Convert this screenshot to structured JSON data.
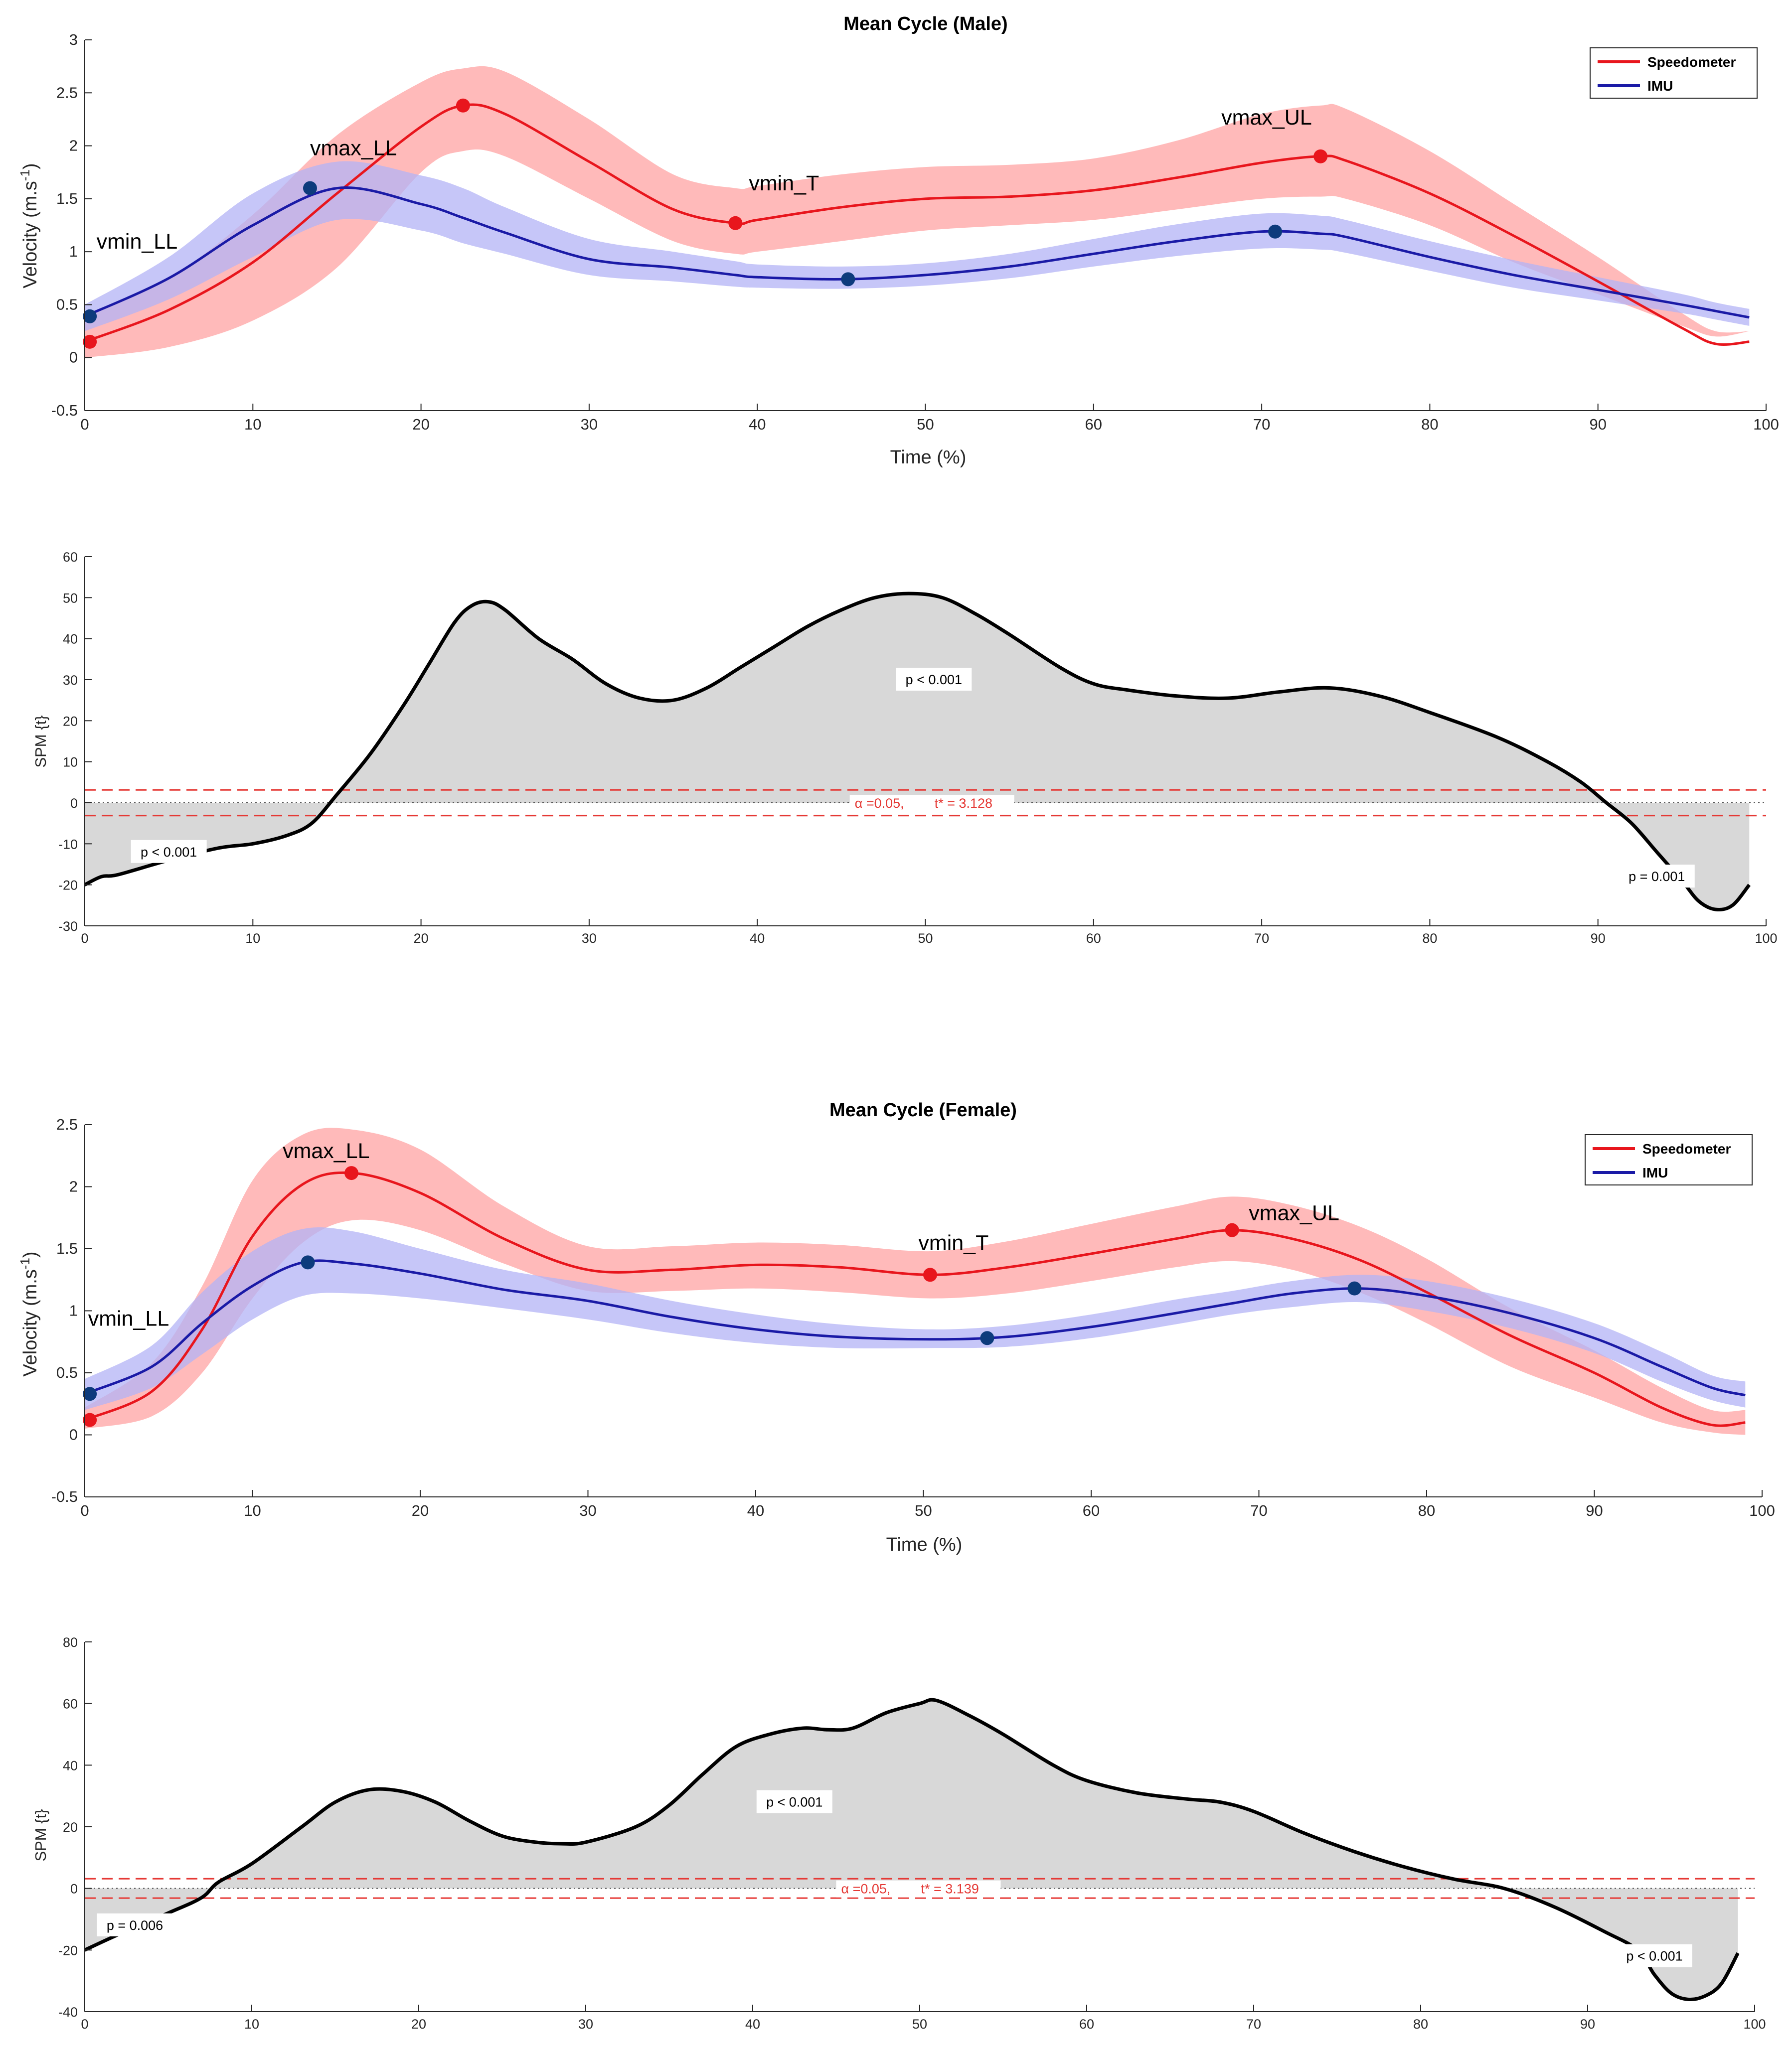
{
  "colors": {
    "speedometer": "#e8161d",
    "speedometer_band": "#ffb2b2",
    "imu": "#1a1aa6",
    "imu_band": "#b3b3f5",
    "imu_marker": "#0d3b7c",
    "spm_curve": "#000000",
    "spm_fill": "#d8d8d8",
    "threshold": "#e53935",
    "zero_line": "#555555"
  },
  "chart_data": [
    {
      "id": "male_velocity",
      "type": "line",
      "title": "Mean Cycle (Male)",
      "xlabel": "Time (%)",
      "ylabel_main": "Velocity (m.s",
      "ylabel_sup": "-1",
      "ylabel_close": ")",
      "xlim": [
        0,
        100
      ],
      "ylim": [
        -0.5,
        3
      ],
      "xticks": [
        "0",
        "10",
        "20",
        "30",
        "40",
        "50",
        "60",
        "70",
        "80",
        "90",
        "100"
      ],
      "yticks": [
        "-0.5",
        "0",
        "0.5",
        "1",
        "1.5",
        "2",
        "2.5",
        "3"
      ],
      "legend": [
        "Speedometer",
        "IMU"
      ],
      "legend_position": "top-right",
      "x": [
        0,
        5,
        10,
        15,
        20,
        22.5,
        25,
        30,
        35,
        38.7,
        40,
        45,
        50,
        55,
        60,
        65,
        70,
        73.5,
        75,
        80,
        85,
        90,
        95,
        97,
        99
      ],
      "series": [
        {
          "name": "Speedometer",
          "values": [
            0.15,
            0.45,
            0.9,
            1.55,
            2.18,
            2.38,
            2.3,
            1.85,
            1.4,
            1.27,
            1.3,
            1.42,
            1.5,
            1.52,
            1.58,
            1.7,
            1.84,
            1.9,
            1.86,
            1.55,
            1.15,
            0.72,
            0.28,
            0.13,
            0.15
          ],
          "band_lower": [
            0.0,
            0.1,
            0.35,
            0.85,
            1.75,
            1.95,
            1.9,
            1.5,
            1.1,
            0.98,
            1.0,
            1.1,
            1.2,
            1.25,
            1.3,
            1.4,
            1.5,
            1.52,
            1.5,
            1.25,
            0.9,
            0.6,
            0.3,
            0.2,
            0.25
          ],
          "band_upper": [
            0.4,
            0.75,
            1.35,
            2.1,
            2.6,
            2.73,
            2.7,
            2.25,
            1.73,
            1.6,
            1.62,
            1.73,
            1.8,
            1.82,
            1.88,
            2.05,
            2.3,
            2.38,
            2.35,
            1.95,
            1.45,
            0.95,
            0.42,
            0.25,
            0.25
          ]
        },
        {
          "name": "IMU",
          "values": [
            0.39,
            0.75,
            1.25,
            1.6,
            1.45,
            1.32,
            1.18,
            0.93,
            0.85,
            0.78,
            0.76,
            0.74,
            0.78,
            0.86,
            0.98,
            1.1,
            1.19,
            1.17,
            1.14,
            0.95,
            0.78,
            0.64,
            0.5,
            0.44,
            0.38
          ],
          "band_lower": [
            0.25,
            0.55,
            0.95,
            1.3,
            1.2,
            1.08,
            0.98,
            0.78,
            0.72,
            0.67,
            0.66,
            0.65,
            0.68,
            0.75,
            0.86,
            0.96,
            1.03,
            1.02,
            0.99,
            0.82,
            0.66,
            0.54,
            0.42,
            0.36,
            0.3
          ],
          "band_upper": [
            0.5,
            0.95,
            1.55,
            1.85,
            1.72,
            1.6,
            1.42,
            1.12,
            1.0,
            0.91,
            0.88,
            0.86,
            0.89,
            0.98,
            1.12,
            1.26,
            1.36,
            1.34,
            1.3,
            1.1,
            0.92,
            0.76,
            0.6,
            0.52,
            0.46
          ]
        }
      ],
      "markers": [
        {
          "series": "Speedometer",
          "x": 0.3,
          "y": 0.15
        },
        {
          "series": "Speedometer",
          "x": 22.5,
          "y": 2.38
        },
        {
          "series": "Speedometer",
          "x": 38.7,
          "y": 1.27
        },
        {
          "series": "Speedometer",
          "x": 73.5,
          "y": 1.9
        },
        {
          "series": "IMU",
          "x": 0.3,
          "y": 0.39
        },
        {
          "series": "IMU",
          "x": 13.4,
          "y": 1.6
        },
        {
          "series": "IMU",
          "x": 45.4,
          "y": 0.74
        },
        {
          "series": "IMU",
          "x": 70.8,
          "y": 1.19
        }
      ],
      "annotations": [
        {
          "text": "vmin_LL",
          "x": 0.7,
          "y": 1.03
        },
        {
          "text": "vmax_LL",
          "x": 13.4,
          "y": 1.91
        },
        {
          "text": "vmin_T",
          "x": 39.5,
          "y": 1.58
        },
        {
          "text": "vmax_UL",
          "x": 67.6,
          "y": 2.2
        }
      ]
    },
    {
      "id": "male_spm",
      "type": "area",
      "ylabel": "SPM {t}",
      "xlim": [
        0,
        100
      ],
      "ylim": [
        -30,
        60
      ],
      "xticks": [
        "0",
        "10",
        "20",
        "30",
        "40",
        "50",
        "60",
        "70",
        "80",
        "90",
        "100"
      ],
      "yticks": [
        "-30",
        "-20",
        "-10",
        "0",
        "10",
        "20",
        "30",
        "40",
        "50",
        "60"
      ],
      "threshold": 3.128,
      "threshold_label_alpha": "α =0.05,",
      "threshold_label_t": "t* = 3.128",
      "threshold_label_x": 45.5,
      "x": [
        0,
        1,
        2,
        5,
        8,
        10,
        12,
        13.5,
        15,
        17,
        19,
        20.5,
        22,
        23,
        24,
        25,
        27,
        29,
        31,
        33,
        35,
        37,
        39,
        41,
        43,
        45,
        47,
        49,
        51,
        53,
        55,
        58,
        60,
        62,
        65,
        68,
        71,
        74,
        77,
        80,
        84,
        87,
        89,
        90.5,
        92,
        93.5,
        95,
        96,
        97,
        98,
        99
      ],
      "values": [
        -20,
        -18,
        -17.5,
        -14,
        -11,
        -10,
        -8,
        -5,
        2,
        12,
        24,
        34,
        44,
        48,
        49,
        47,
        40,
        35,
        29,
        25.5,
        25,
        28,
        33,
        38,
        43,
        47,
        50,
        51,
        50,
        46,
        41,
        33,
        29,
        27.5,
        26,
        25.5,
        27,
        28,
        26,
        22,
        16,
        10,
        5,
        0,
        -5,
        -12,
        -19,
        -24,
        -26,
        -25,
        -20
      ],
      "p_labels": [
        {
          "text": "p < 0.001",
          "x": 5,
          "y": -12
        },
        {
          "text": "p < 0.001",
          "x": 50.5,
          "y": 30
        },
        {
          "text": "p = 0.001",
          "x": 93.5,
          "y": -18
        }
      ]
    },
    {
      "id": "female_velocity",
      "type": "line",
      "title": "Mean Cycle (Female)",
      "xlabel": "Time (%)",
      "ylabel_main": "Velocity (m.s",
      "ylabel_sup": "-1",
      "ylabel_close": ")",
      "xlim": [
        0,
        100
      ],
      "ylim": [
        -0.5,
        2.5
      ],
      "xticks": [
        "0",
        "10",
        "20",
        "30",
        "40",
        "50",
        "60",
        "70",
        "80",
        "90",
        "100"
      ],
      "yticks": [
        "-0.5",
        "0",
        "0.5",
        "1",
        "1.5",
        "2",
        "2.5"
      ],
      "legend": [
        "Speedometer",
        "IMU"
      ],
      "legend_position": "top-right",
      "x": [
        0,
        4,
        7,
        10,
        13,
        16,
        20,
        25,
        30,
        35,
        40,
        45,
        50.4,
        55,
        60,
        65,
        68.4,
        72,
        76,
        80,
        85,
        90,
        94,
        97,
        99
      ],
      "series": [
        {
          "name": "Speedometer",
          "values": [
            0.12,
            0.35,
            0.85,
            1.6,
            2.02,
            2.11,
            1.95,
            1.58,
            1.33,
            1.33,
            1.37,
            1.35,
            1.29,
            1.35,
            1.46,
            1.58,
            1.65,
            1.58,
            1.41,
            1.15,
            0.8,
            0.5,
            0.22,
            0.08,
            0.1
          ],
          "band_lower": [
            0.05,
            0.15,
            0.5,
            1.1,
            1.55,
            1.73,
            1.65,
            1.38,
            1.16,
            1.16,
            1.18,
            1.15,
            1.1,
            1.14,
            1.24,
            1.35,
            1.4,
            1.33,
            1.15,
            0.9,
            0.55,
            0.3,
            0.1,
            0.02,
            0.0
          ],
          "band_upper": [
            0.22,
            0.58,
            1.2,
            2.05,
            2.42,
            2.46,
            2.3,
            1.84,
            1.52,
            1.52,
            1.55,
            1.53,
            1.48,
            1.56,
            1.7,
            1.84,
            1.92,
            1.85,
            1.68,
            1.42,
            1.02,
            0.68,
            0.38,
            0.2,
            0.2
          ]
        },
        {
          "name": "IMU",
          "values": [
            0.33,
            0.55,
            0.9,
            1.2,
            1.39,
            1.38,
            1.3,
            1.17,
            1.08,
            0.95,
            0.85,
            0.79,
            0.77,
            0.79,
            0.87,
            0.98,
            1.06,
            1.14,
            1.18,
            1.12,
            0.98,
            0.78,
            0.55,
            0.38,
            0.32
          ],
          "band_lower": [
            0.2,
            0.38,
            0.65,
            0.93,
            1.12,
            1.14,
            1.1,
            1.02,
            0.93,
            0.82,
            0.74,
            0.7,
            0.7,
            0.71,
            0.78,
            0.89,
            0.97,
            1.03,
            1.07,
            1.0,
            0.86,
            0.66,
            0.43,
            0.28,
            0.22
          ],
          "band_upper": [
            0.45,
            0.72,
            1.15,
            1.48,
            1.66,
            1.64,
            1.5,
            1.33,
            1.22,
            1.08,
            0.97,
            0.89,
            0.85,
            0.88,
            0.97,
            1.09,
            1.16,
            1.24,
            1.29,
            1.24,
            1.1,
            0.9,
            0.67,
            0.48,
            0.43
          ]
        }
      ],
      "markers": [
        {
          "series": "Speedometer",
          "x": 0.3,
          "y": 0.12
        },
        {
          "series": "Speedometer",
          "x": 15.9,
          "y": 2.11
        },
        {
          "series": "Speedometer",
          "x": 50.4,
          "y": 1.29
        },
        {
          "series": "Speedometer",
          "x": 68.4,
          "y": 1.65
        },
        {
          "series": "IMU",
          "x": 0.3,
          "y": 0.33
        },
        {
          "series": "IMU",
          "x": 13.3,
          "y": 1.39
        },
        {
          "series": "IMU",
          "x": 53.8,
          "y": 0.78
        },
        {
          "series": "IMU",
          "x": 75.7,
          "y": 1.18
        }
      ],
      "annotations": [
        {
          "text": "vmin_LL",
          "x": 0.2,
          "y": 0.88
        },
        {
          "text": "vmax_LL",
          "x": 11.8,
          "y": 2.23
        },
        {
          "text": "vmin_T",
          "x": 49.7,
          "y": 1.49
        },
        {
          "text": "vmax_UL",
          "x": 69.4,
          "y": 1.73
        }
      ]
    },
    {
      "id": "female_spm",
      "type": "area",
      "ylabel": "SPM {t}",
      "xlim": [
        0,
        100
      ],
      "ylim": [
        -40,
        80
      ],
      "xticks": [
        "0",
        "10",
        "20",
        "30",
        "40",
        "50",
        "60",
        "70",
        "80",
        "90",
        "100"
      ],
      "yticks": [
        "-40",
        "-20",
        "0",
        "20",
        "40",
        "60",
        "80"
      ],
      "threshold": 3.139,
      "threshold_label_alpha": "α =0.05,",
      "threshold_label_t": "t* = 3.139",
      "threshold_label_x": 45,
      "x": [
        0,
        2,
        5,
        7,
        8,
        10,
        13,
        15,
        17,
        19,
        21,
        23,
        25,
        27,
        28.5,
        30,
        33,
        35,
        37,
        39,
        41,
        43,
        44.5,
        46,
        48,
        50,
        51,
        53,
        55,
        58,
        60,
        63,
        66,
        68,
        70,
        73,
        76,
        79,
        82,
        85,
        88,
        91,
        93,
        94,
        95,
        96,
        97,
        98,
        99
      ],
      "values": [
        -20,
        -15,
        -8,
        -3,
        2,
        8,
        20,
        28,
        32,
        31.5,
        28,
        22,
        17,
        15,
        14.5,
        15,
        20,
        27,
        37,
        46,
        50,
        52,
        51.5,
        52,
        57,
        60,
        61,
        56,
        50,
        40,
        35,
        31,
        29,
        28,
        25,
        18,
        12,
        7,
        3,
        0,
        -6,
        -14,
        -20,
        -28,
        -34,
        -36,
        -35,
        -31,
        -21
      ],
      "p_labels": [
        {
          "text": "p = 0.006",
          "x": 3,
          "y": -12
        },
        {
          "text": "p < 0.001",
          "x": 42.5,
          "y": 28
        },
        {
          "text": "p < 0.001",
          "x": 94,
          "y": -22
        }
      ]
    }
  ]
}
